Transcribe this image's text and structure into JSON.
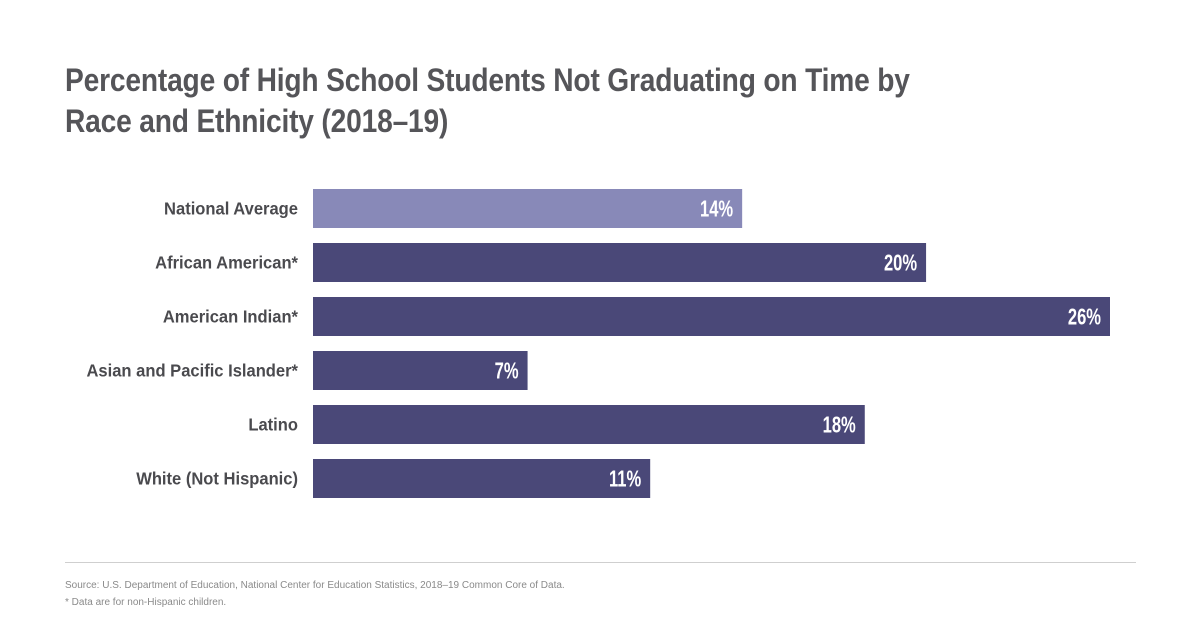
{
  "title_lines": [
    "Percentage of High School Students Not Graduating on Time by",
    "Race and Ethnicity (2018–19)"
  ],
  "chart_data": {
    "type": "bar",
    "orientation": "horizontal",
    "title": "Percentage of High School Students Not Graduating on Time by Race and Ethnicity (2018–19)",
    "categories": [
      "National Average",
      "African American*",
      "American Indian*",
      "Asian and Pacific Islander*",
      "Latino",
      "White (Not Hispanic)"
    ],
    "values": [
      14,
      20,
      26,
      7,
      18,
      11
    ],
    "value_labels": [
      "14%",
      "20%",
      "26%",
      "7%",
      "18%",
      "11%"
    ],
    "unit": "%",
    "xlim": [
      0,
      26
    ],
    "grid": false,
    "legend": "none",
    "colors": {
      "highlight": "#8889b8",
      "default": "#4a4878"
    },
    "highlight_index": 0
  },
  "footer": {
    "source": "Source: U.S. Department of Education, National Center for Education Statistics, 2018–19 Common Core of Data.",
    "note": "* Data are for non-Hispanic children."
  }
}
